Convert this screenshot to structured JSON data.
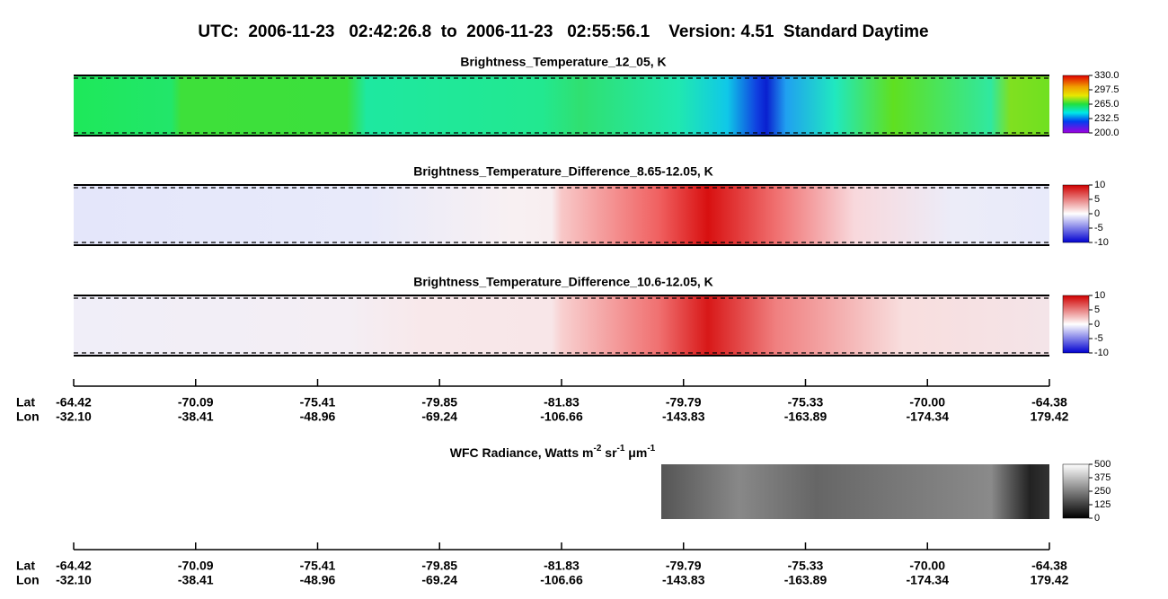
{
  "header": {
    "title": "UTC:  2006-11-23   02:42:26.8  to  2006-11-23   02:55:56.1    Version: 4.51  Standard Daytime"
  },
  "panels": [
    {
      "title": "Brightness_Temperature_12_05, K",
      "colorbar": [
        "330.0",
        "297.5",
        "265.0",
        "232.5",
        "200.0"
      ]
    },
    {
      "title": "Brightness_Temperature_Difference_8.65-12.05, K",
      "colorbar": [
        "10",
        "5",
        "0",
        "-5",
        "-10"
      ]
    },
    {
      "title": "Brightness_Temperature_Difference_10.6-12.05, K",
      "colorbar": [
        "10",
        "5",
        "0",
        "-5",
        "-10"
      ]
    }
  ],
  "axis": {
    "lat_label": "Lat",
    "lon_label": "Lon",
    "lat": [
      "-64.42",
      "-70.09",
      "-75.41",
      "-79.85",
      "-81.83",
      "-79.79",
      "-75.33",
      "-70.00",
      "-64.38"
    ],
    "lon": [
      "-32.10",
      "-38.41",
      "-48.96",
      "-69.24",
      "-106.66",
      "-143.83",
      "-163.89",
      "-174.34",
      "179.42"
    ]
  },
  "wfc": {
    "title_parts": [
      "WFC Radiance, Watts m",
      "-2",
      " sr",
      "-1",
      " μm",
      "-1"
    ],
    "colorbar": [
      "500",
      "375",
      "250",
      "125",
      "0"
    ]
  }
}
